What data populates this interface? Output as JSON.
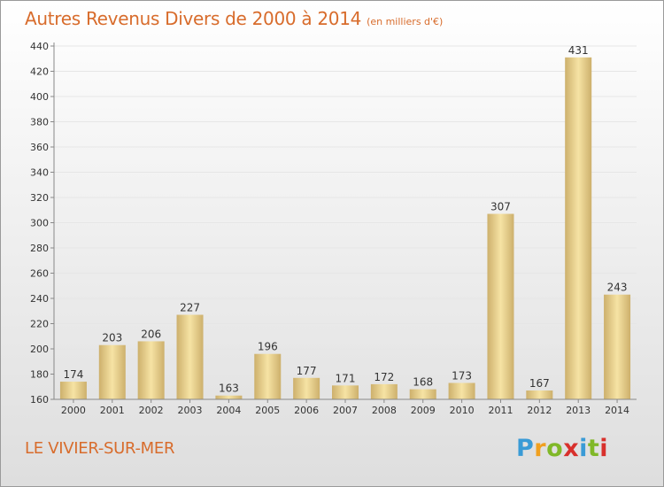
{
  "title": "Autres Revenus Divers de 2000 à 2014",
  "subtitle": "(en milliers d'€)",
  "place": "LE VIVIER-SUR-MER",
  "logo": {
    "letters": [
      "P",
      "r",
      "o",
      "x",
      "i",
      "t",
      "i"
    ],
    "colors": [
      "#3a9bd6",
      "#f0a020",
      "#80b828",
      "#d8302c",
      "#3a9bd6",
      "#80b828",
      "#d8302c"
    ]
  },
  "colors": {
    "accent": "#d86c2c",
    "bar_light": "#f6e3a4",
    "bar_dark": "#cdb06c",
    "axis": "#888888",
    "grid": "#e6e6e6"
  },
  "chart_data": {
    "type": "bar",
    "title": "Autres Revenus Divers de 2000 à 2014",
    "subtitle": "(en milliers d'€)",
    "xlabel": "",
    "ylabel": "",
    "categories": [
      "2000",
      "2001",
      "2002",
      "2003",
      "2004",
      "2005",
      "2006",
      "2007",
      "2008",
      "2009",
      "2010",
      "2011",
      "2012",
      "2013",
      "2014"
    ],
    "values": [
      174,
      203,
      206,
      227,
      163,
      196,
      177,
      171,
      172,
      168,
      173,
      307,
      167,
      431,
      243
    ],
    "ylim": [
      160,
      440
    ],
    "yticks": [
      160,
      180,
      200,
      220,
      240,
      260,
      280,
      300,
      320,
      340,
      360,
      380,
      400,
      420,
      440
    ],
    "grid": true,
    "legend": "none"
  }
}
